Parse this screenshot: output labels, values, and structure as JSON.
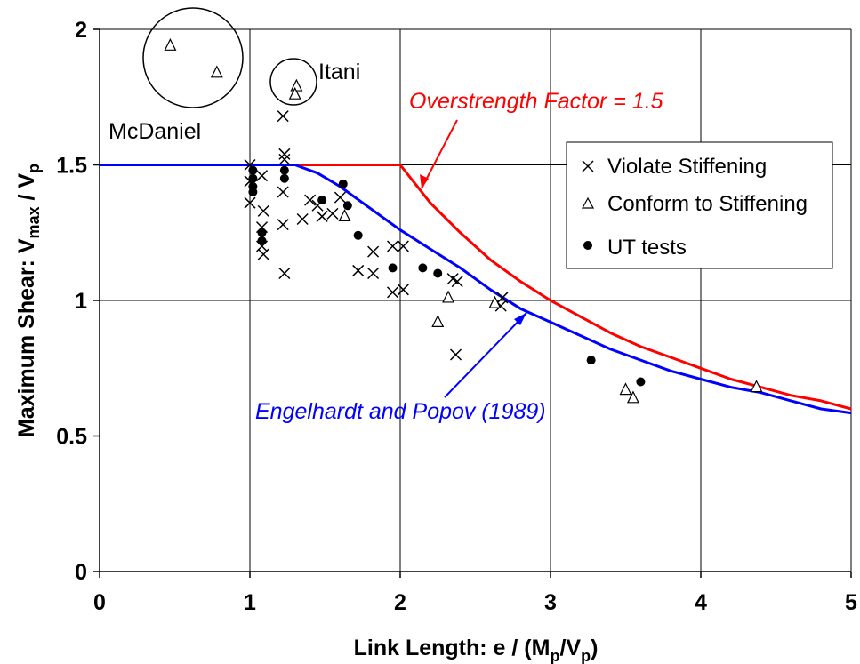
{
  "chart_data": {
    "type": "scatter",
    "title": "",
    "xlabel": "Link Length: e / (M",
    "xlabel_sub1": "p",
    "xlabel_mid": "/V",
    "xlabel_sub2": "p",
    "xlabel_end": ")",
    "ylabel": "Maximum Shear: V",
    "ylabel_sub1": "max",
    "ylabel_mid": " / V",
    "ylabel_sub2": "p",
    "xlim": [
      0,
      5
    ],
    "ylim": [
      0,
      2
    ],
    "x_ticks": [
      "0",
      "1",
      "2",
      "3",
      "4",
      "5"
    ],
    "y_ticks": [
      "0",
      "0.5",
      "1",
      "1.5",
      "2"
    ],
    "grid": true,
    "legend_position": "right",
    "legend": {
      "violate": "Violate Stiffening",
      "conform": "Conform to Stiffening",
      "ut": "UT tests"
    },
    "annotations": {
      "mcdaniel": "McDaniel",
      "itani": "Itani",
      "overstrength": "Overstrength Factor = 1.5",
      "engelhardt": "Engelhardt and Popov (1989)"
    },
    "colors": {
      "overstrength": "#ff0000",
      "engelhardt": "#0000ff",
      "markers": "#000000"
    },
    "series": [
      {
        "name": "Violate Stiffening",
        "marker": "x",
        "points": [
          [
            1.0,
            1.5
          ],
          [
            1.0,
            1.36
          ],
          [
            1.0,
            1.44
          ],
          [
            1.08,
            1.46
          ],
          [
            1.09,
            1.33
          ],
          [
            1.08,
            1.27
          ],
          [
            1.08,
            1.2
          ],
          [
            1.09,
            1.17
          ],
          [
            1.22,
            1.68
          ],
          [
            1.23,
            1.54
          ],
          [
            1.23,
            1.52
          ],
          [
            1.22,
            1.4
          ],
          [
            1.22,
            1.28
          ],
          [
            1.23,
            1.1
          ],
          [
            1.35,
            1.3
          ],
          [
            1.4,
            1.37
          ],
          [
            1.45,
            1.35
          ],
          [
            1.48,
            1.31
          ],
          [
            1.55,
            1.32
          ],
          [
            1.6,
            1.38
          ],
          [
            1.72,
            1.11
          ],
          [
            1.82,
            1.18
          ],
          [
            1.82,
            1.1
          ],
          [
            1.95,
            1.2
          ],
          [
            1.95,
            1.03
          ],
          [
            2.02,
            1.2
          ],
          [
            2.02,
            1.04
          ],
          [
            2.35,
            1.08
          ],
          [
            2.38,
            1.07
          ],
          [
            2.37,
            0.8
          ],
          [
            2.67,
            0.98
          ],
          [
            2.68,
            1.01
          ]
        ]
      },
      {
        "name": "Conform to Stiffening",
        "marker": "triangle",
        "points": [
          [
            0.47,
            1.94
          ],
          [
            0.78,
            1.84
          ],
          [
            1.31,
            1.79
          ],
          [
            1.3,
            1.76
          ],
          [
            1.63,
            1.31
          ],
          [
            2.25,
            0.92
          ],
          [
            2.32,
            1.01
          ],
          [
            2.63,
            0.99
          ],
          [
            3.5,
            0.67
          ],
          [
            3.55,
            0.64
          ],
          [
            4.37,
            0.68
          ]
        ]
      },
      {
        "name": "UT tests",
        "marker": "dot",
        "points": [
          [
            1.02,
            1.48
          ],
          [
            1.02,
            1.45
          ],
          [
            1.02,
            1.42
          ],
          [
            1.02,
            1.4
          ],
          [
            1.08,
            1.25
          ],
          [
            1.08,
            1.22
          ],
          [
            1.23,
            1.48
          ],
          [
            1.23,
            1.45
          ],
          [
            1.48,
            1.37
          ],
          [
            1.62,
            1.43
          ],
          [
            1.65,
            1.35
          ],
          [
            1.72,
            1.24
          ],
          [
            1.95,
            1.12
          ],
          [
            2.15,
            1.12
          ],
          [
            2.25,
            1.1
          ],
          [
            3.27,
            0.78
          ],
          [
            3.6,
            0.7
          ]
        ]
      }
    ],
    "lines": [
      {
        "name": "Overstrength Factor = 1.5",
        "points": [
          [
            0,
            1.5
          ],
          [
            2.0,
            1.5
          ],
          [
            2.2,
            1.36
          ],
          [
            2.4,
            1.25
          ],
          [
            2.6,
            1.15
          ],
          [
            2.8,
            1.07
          ],
          [
            3.0,
            1.0
          ],
          [
            3.2,
            0.94
          ],
          [
            3.4,
            0.88
          ],
          [
            3.6,
            0.83
          ],
          [
            3.8,
            0.79
          ],
          [
            4.0,
            0.75
          ],
          [
            4.2,
            0.71
          ],
          [
            4.4,
            0.68
          ],
          [
            4.6,
            0.65
          ],
          [
            4.8,
            0.63
          ],
          [
            5.0,
            0.6
          ]
        ]
      },
      {
        "name": "Engelhardt and Popov (1989)",
        "points": [
          [
            0,
            1.5
          ],
          [
            1.3,
            1.5
          ],
          [
            1.45,
            1.47
          ],
          [
            1.6,
            1.42
          ],
          [
            1.8,
            1.34
          ],
          [
            2.0,
            1.26
          ],
          [
            2.2,
            1.19
          ],
          [
            2.4,
            1.12
          ],
          [
            2.6,
            1.04
          ],
          [
            2.8,
            0.97
          ],
          [
            3.0,
            0.92
          ],
          [
            3.2,
            0.87
          ],
          [
            3.4,
            0.82
          ],
          [
            3.6,
            0.78
          ],
          [
            3.8,
            0.74
          ],
          [
            4.0,
            0.71
          ],
          [
            4.2,
            0.68
          ],
          [
            4.4,
            0.66
          ],
          [
            4.6,
            0.63
          ],
          [
            4.8,
            0.6
          ],
          [
            5.0,
            0.585
          ]
        ]
      }
    ]
  }
}
